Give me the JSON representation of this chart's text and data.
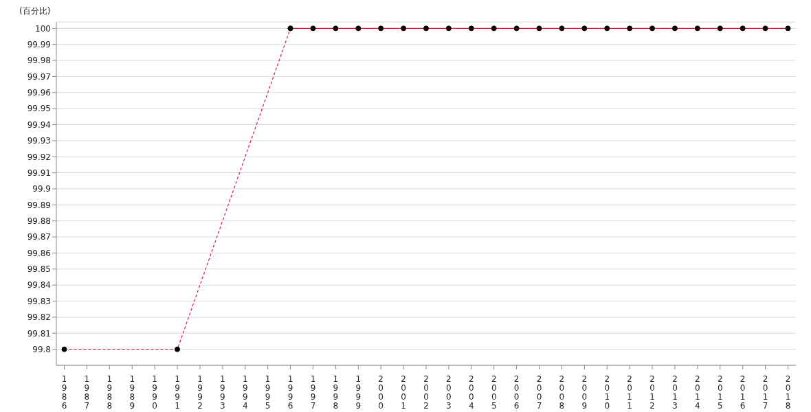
{
  "chart_data": {
    "type": "line",
    "ylabel": "(百分比)",
    "categories": [
      "1986",
      "1987",
      "1988",
      "1989",
      "1990",
      "1991",
      "1992",
      "1993",
      "1994",
      "1995",
      "1996",
      "1997",
      "1998",
      "1999",
      "2000",
      "2001",
      "2002",
      "2003",
      "2004",
      "2005",
      "2006",
      "2007",
      "2008",
      "2009",
      "2010",
      "2011",
      "2012",
      "2013",
      "2014",
      "2015",
      "2016",
      "2017",
      "2018"
    ],
    "series": [
      {
        "color": "#e8173c",
        "line_style": "dashed",
        "values": [
          99.8,
          null,
          null,
          null,
          null,
          99.8,
          null,
          null,
          null,
          null,
          100,
          null,
          null,
          null,
          null,
          null,
          null,
          null,
          null,
          null,
          null,
          null,
          null,
          null,
          null,
          null,
          null,
          null,
          null,
          null,
          null,
          null,
          null
        ]
      },
      {
        "color": "#e8173c",
        "line_style": "solid",
        "values": [
          null,
          null,
          null,
          null,
          null,
          null,
          null,
          null,
          null,
          null,
          100,
          100,
          100,
          100,
          100,
          100,
          100,
          100,
          100,
          100,
          100,
          100,
          100,
          100,
          100,
          100,
          100,
          100,
          100,
          100,
          100,
          100,
          100
        ]
      }
    ],
    "ylim": [
      99.79,
      100.004
    ],
    "yticks": [
      99.8,
      99.81,
      99.82,
      99.83,
      99.84,
      99.85,
      99.86,
      99.87,
      99.88,
      99.89,
      99.9,
      99.91,
      99.92,
      99.93,
      99.94,
      99.95,
      99.96,
      99.97,
      99.98,
      99.99,
      100
    ],
    "grid": "y",
    "marker": "circle",
    "legend": false
  }
}
